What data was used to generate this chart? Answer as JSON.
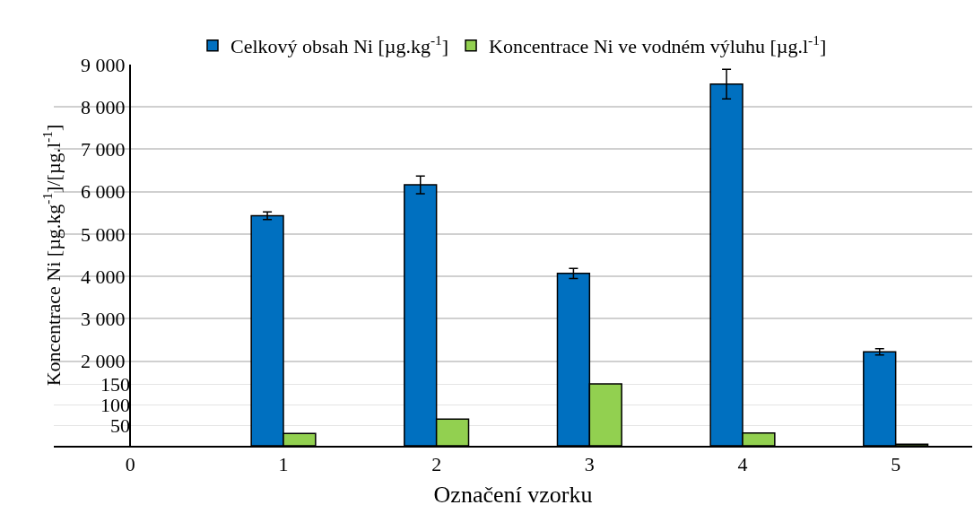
{
  "chart_data": {
    "type": "bar",
    "xlabel": "Označení vzorku",
    "ylabel": "Koncentrace Ni [µg.kg$^{-1}$]/[µg.l$^{-1}$]",
    "categories": [
      "0",
      "1",
      "2",
      "3",
      "4",
      "5"
    ],
    "series": [
      {
        "name": "Celkový obsah Ni [µg.kg$^{-1}$]",
        "color": "#0070c0",
        "values": [
          null,
          5430,
          6160,
          4070,
          8540,
          2220
        ],
        "errors": [
          null,
          90,
          210,
          120,
          350,
          75
        ]
      },
      {
        "name": "Koncentrace Ni ve vodném výluhu [µg.l$^{-1}$]",
        "color": "#92d050",
        "axis": "y2",
        "values": [
          null,
          30,
          65,
          150,
          31,
          4
        ]
      }
    ],
    "ylim": [
      0,
      9000
    ],
    "yticks": [
      {
        "value": 2000,
        "label": "2 000"
      },
      {
        "value": 3000,
        "label": "3 000"
      },
      {
        "value": 4000,
        "label": "4 000"
      },
      {
        "value": 5000,
        "label": "5 000"
      },
      {
        "value": 6000,
        "label": "6 000"
      },
      {
        "value": 7000,
        "label": "7 000"
      },
      {
        "value": 8000,
        "label": "8 000"
      },
      {
        "value": 9000,
        "label": "9 000"
      }
    ],
    "y2lim": [
      0,
      925
    ],
    "y2ticks": [
      50,
      100,
      150
    ],
    "grid": "y",
    "legend": "top"
  }
}
